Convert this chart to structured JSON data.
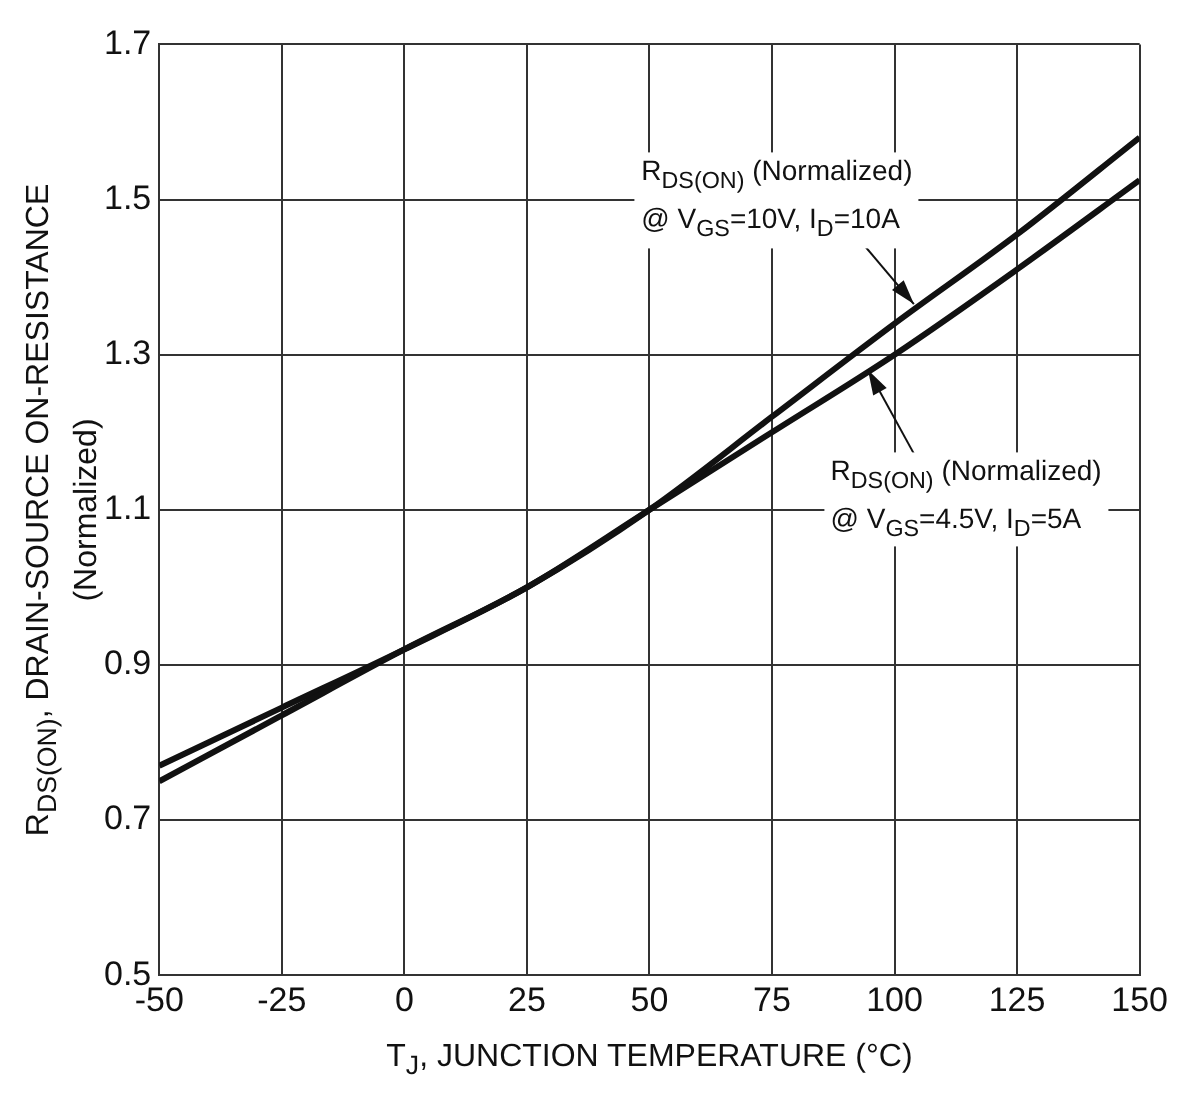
{
  "chart_data": {
    "type": "line",
    "xlabel": "T$_{J}$, JUNCTION TEMPERATURE (°C)",
    "ylabel": "R$_{DS(ON)}$, DRAIN-SOURCE ON-RESISTANCE\n(Normalized)",
    "x": [
      -50,
      -25,
      0,
      25,
      50,
      75,
      100,
      125,
      150
    ],
    "series": [
      {
        "color": "#111111",
        "values": [
          0.75,
          0.835,
          0.92,
          1.0,
          1.1,
          1.22,
          1.34,
          1.455,
          1.58
        ]
      },
      {
        "color": "#111111",
        "values": [
          0.77,
          0.845,
          0.92,
          1.0,
          1.1,
          1.2,
          1.3,
          1.41,
          1.525
        ]
      }
    ],
    "xlim": [
      -50,
      150
    ],
    "xticks": [
      -50,
      -25,
      0,
      25,
      50,
      75,
      100,
      125,
      150
    ],
    "ylim": [
      0.5,
      1.7
    ],
    "yticks": [
      0.5,
      0.7,
      0.9,
      1.1,
      1.3,
      1.5,
      1.7
    ],
    "grid": true,
    "legend": false,
    "marker": "none",
    "line_style": "solid",
    "annotations": [
      "R$_{DS(ON)}$ (Normalized)\n@ V$_{GS}$=10V, I$_{D}$=10A",
      "R$_{DS(ON)}$ (Normalized)\n@ V$_{GS}$=4.5V, I$_{D}$=5A"
    ]
  }
}
